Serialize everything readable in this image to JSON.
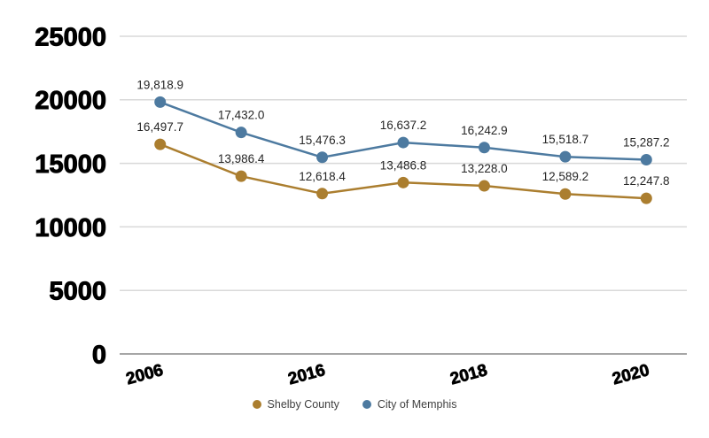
{
  "chart_data": {
    "type": "line",
    "title": "",
    "xlabel": "",
    "ylabel": "",
    "categories": [
      "2006",
      "",
      "2016",
      "",
      "2018",
      "",
      "2020"
    ],
    "y_ticks": [
      0,
      5000,
      10000,
      15000,
      20000,
      25000
    ],
    "ylim": [
      0,
      25000
    ],
    "grid": "horizontal",
    "legend_position": "bottom",
    "series": [
      {
        "name": "Shelby County",
        "color": "#AB7E2F",
        "values": [
          16497.7,
          13986.4,
          12618.4,
          13486.8,
          13228.0,
          12589.2,
          12247.8
        ],
        "labels": [
          "16,497.7",
          "13,986.4",
          "12,618.4",
          "13,486.8",
          "13,228.0",
          "12,589.2",
          "12,247.8"
        ]
      },
      {
        "name": "City of Memphis",
        "color": "#4D7AA0",
        "values": [
          19818.9,
          17432.0,
          15476.3,
          16637.2,
          16242.9,
          15518.7,
          15287.2
        ],
        "labels": [
          "19,818.9",
          "17,432.0",
          "15,476.3",
          "16,637.2",
          "16,242.9",
          "15,518.7",
          "15,287.2"
        ]
      }
    ],
    "colors": {
      "gridline": "#D9D9D9",
      "axis_line": "#A6A6A6",
      "tick_label": "#000000",
      "data_label": "#262626",
      "legend_text": "#404040",
      "background": "#FFFFFF"
    }
  }
}
